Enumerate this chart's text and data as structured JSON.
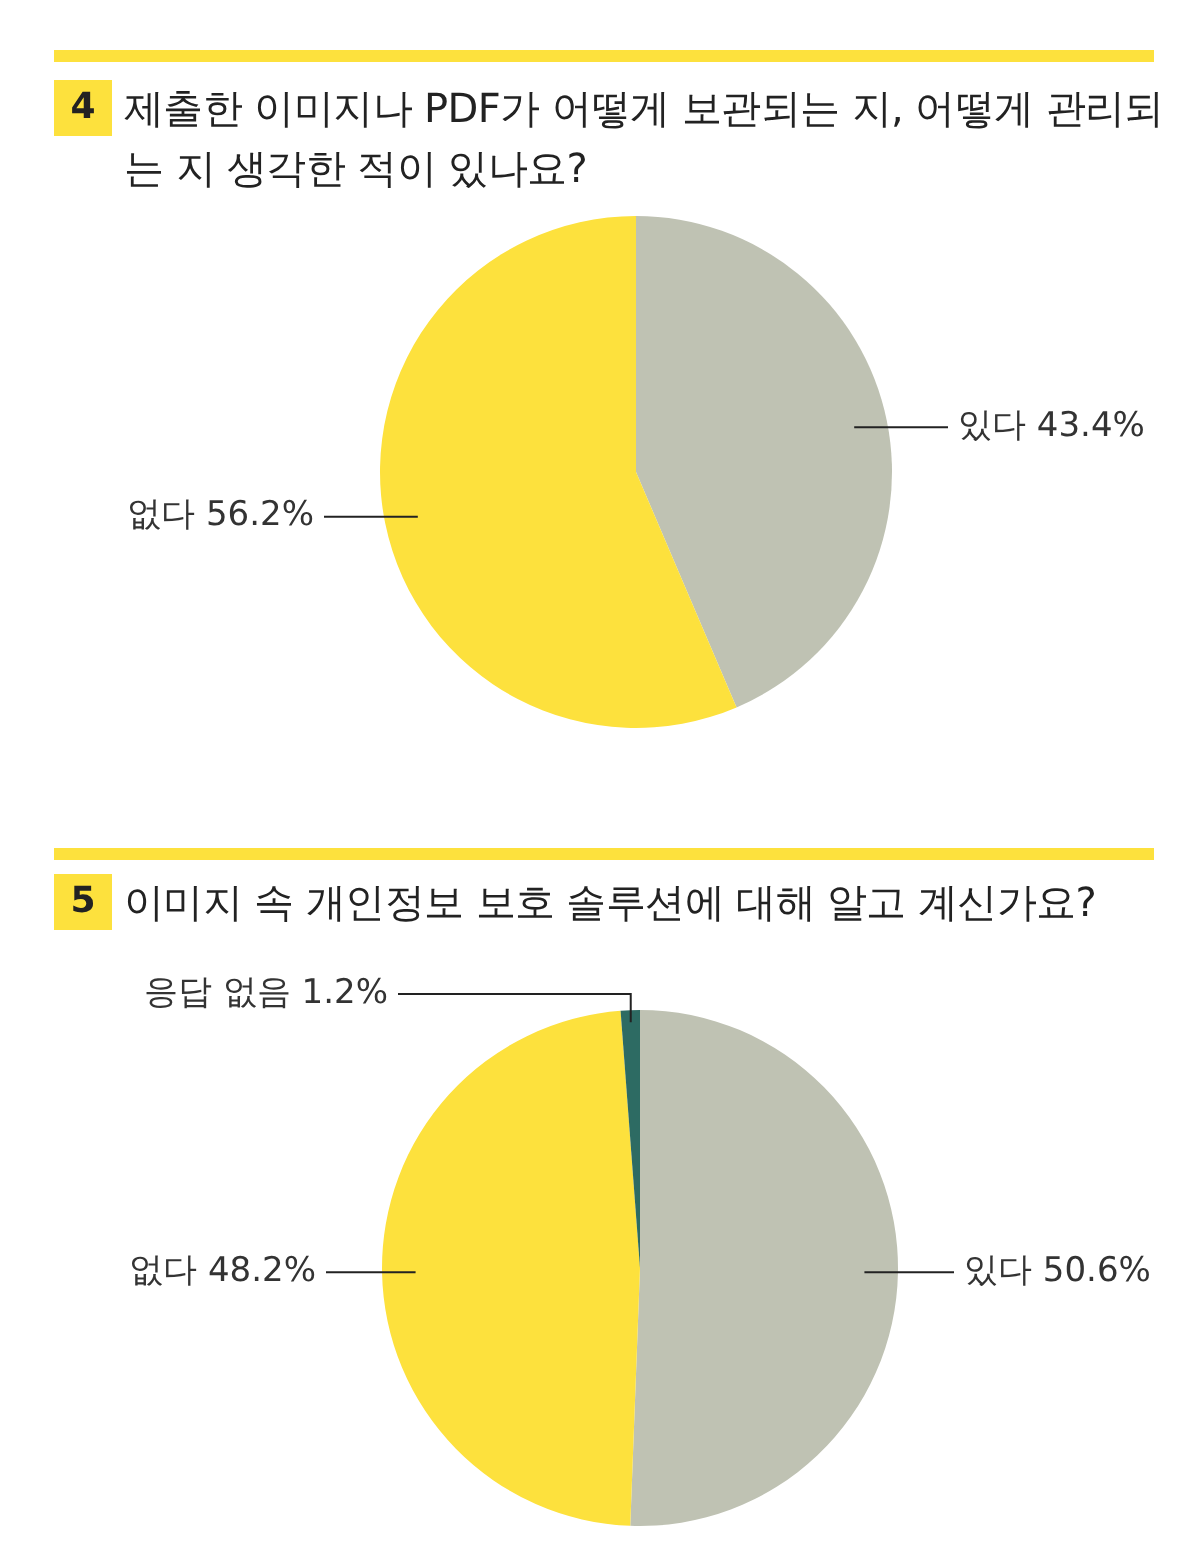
{
  "chart_data": [
    {
      "type": "pie",
      "title": "제출한 이미지나 PDF가 어떻게 보관되는 지, 어떻게 관리되는 지 생각한 적이 있나요?",
      "annotations": [
        "4"
      ],
      "categories": [
        "있다",
        "없다"
      ],
      "values": [
        43.4,
        56.2
      ],
      "colors": [
        "#bfc2b3",
        "#fde13d"
      ],
      "value_labels": [
        "43.4%",
        "56.2%"
      ]
    },
    {
      "type": "pie",
      "title": "이미지 속 개인정보 보호 솔루션에 대해 알고 계신가요?",
      "annotations": [
        "5"
      ],
      "categories": [
        "있다",
        "없다",
        "응답 없음"
      ],
      "values": [
        50.6,
        48.2,
        1.2
      ],
      "colors": [
        "#bfc2b3",
        "#fde13d",
        "#2d6b63"
      ],
      "value_labels": [
        "50.6%",
        "48.2%",
        "1.2%"
      ]
    }
  ]
}
